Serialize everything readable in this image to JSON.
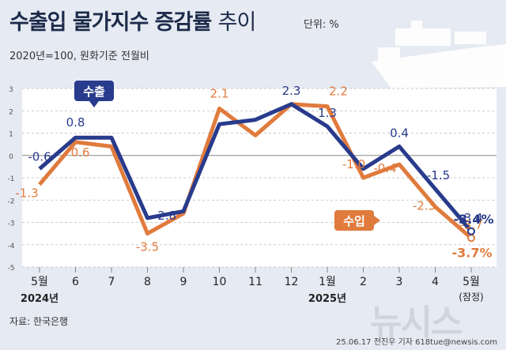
{
  "header": {
    "title_main": "수출입 물가지수 증감률",
    "title_sub": "추이",
    "unit": "단위: %",
    "base_note": "2020년=100, 원화기준 전월비"
  },
  "footer": {
    "source": "자료: 한국은행",
    "credit": "25.06.17 전진우 기자 618tue@newsis.com",
    "watermark": "뉴시스"
  },
  "colors": {
    "export": "#283b8c",
    "import": "#e07b3d",
    "plot_bg": "#ffffff",
    "grid": "#bbbbbb"
  },
  "chart_data": {
    "type": "line",
    "title": "수출입 물가지수 증감률 추이",
    "ylabel": "%",
    "ylim": [
      -5,
      3
    ],
    "yticks": [
      "3",
      "2",
      "1",
      "0",
      "-1",
      "-2",
      "-3",
      "-4",
      "-5"
    ],
    "categories": [
      "5월",
      "6",
      "7",
      "8",
      "9",
      "10",
      "11",
      "12",
      "1월",
      "2",
      "3",
      "4",
      "5월"
    ],
    "year_labels": [
      {
        "index": 0,
        "text": "2024년"
      },
      {
        "index": 8,
        "text": "2025년"
      }
    ],
    "last_note": "(잠정)",
    "series": [
      {
        "name": "수출",
        "values": [
          -0.6,
          0.8,
          0.8,
          -2.8,
          -2.5,
          1.4,
          1.6,
          2.3,
          1.3,
          -0.6,
          0.4,
          -1.5,
          -3.4
        ],
        "labels": [
          "-0.6",
          "0.8",
          "",
          "-2.8",
          "",
          "",
          "",
          "2.3",
          "1.3",
          "",
          "0.4",
          "-1.5",
          "-3.4"
        ]
      },
      {
        "name": "수입",
        "values": [
          -1.3,
          0.6,
          0.4,
          -3.5,
          -2.6,
          2.1,
          0.9,
          2.3,
          2.2,
          -1.0,
          -0.4,
          -2.3,
          -3.7
        ],
        "labels": [
          "-1.3",
          "0.6",
          "",
          "-3.5",
          "",
          "2.1",
          "",
          "",
          "2.2",
          "-1.0",
          "-0.4",
          "-2.3",
          "-3.7"
        ]
      }
    ],
    "last_value_labels": {
      "export": "-3.4%",
      "import": "-3.7%"
    }
  }
}
